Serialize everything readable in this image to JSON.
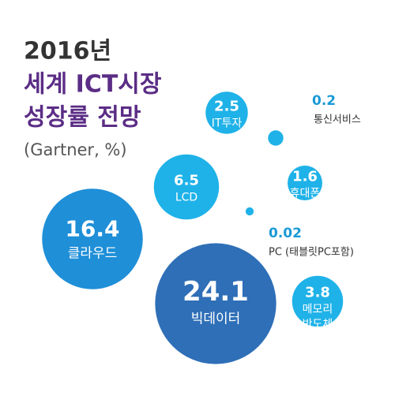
{
  "chart_data": {
    "type": "bubble",
    "title": [
      "2016년",
      "세계 ICT시장",
      "성장률 전망"
    ],
    "subtitle": "(Gartner, %)",
    "categories": [
      "IT투자",
      "통신서비스",
      "LCD",
      "휴대폰",
      "PC (태블릿PC포함)",
      "클라우드",
      "빅데이터",
      "메모리 반도체"
    ],
    "values": [
      2.5,
      0.2,
      6.5,
      1.6,
      0.02,
      16.4,
      24.1,
      3.8
    ],
    "colors": [
      "#1fb2e8",
      "#1fb2e8",
      "#1fb2e8",
      "#1fb2e8",
      "#1fb2e8",
      "#1f8fd8",
      "#2e6fb7",
      "#1fb2e8"
    ]
  }
}
